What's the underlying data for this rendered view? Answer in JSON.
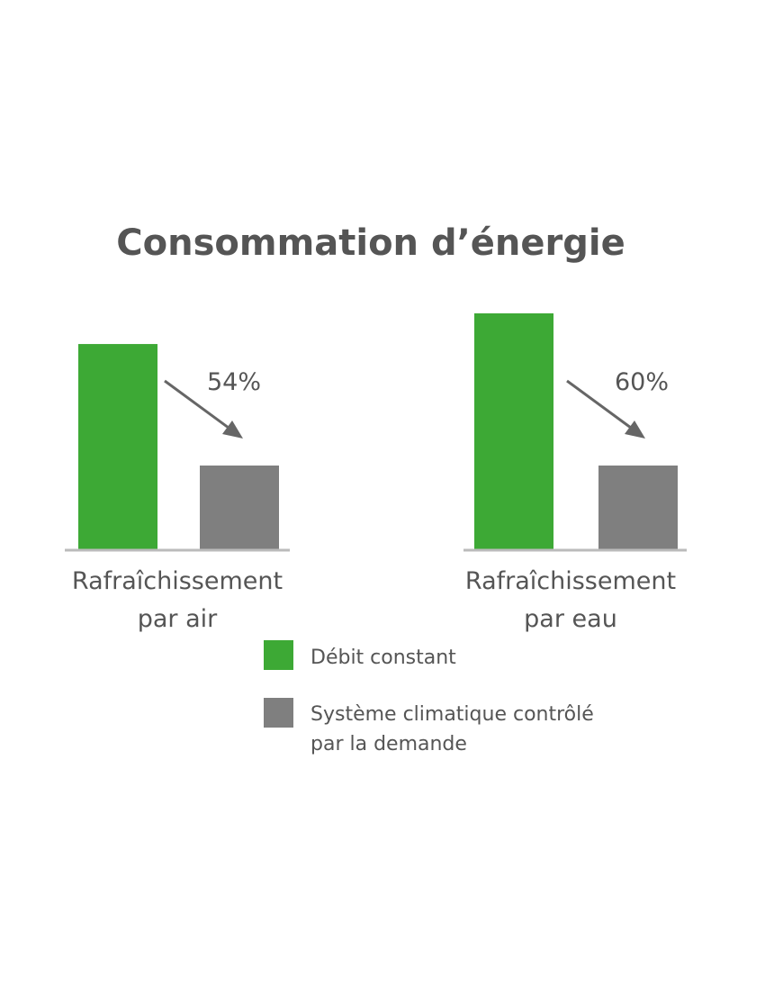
{
  "chart_data": {
    "type": "bar",
    "title": "Consommation d’énergie",
    "categories": [
      {
        "line1": "Rafraîchissement",
        "line2": "par air"
      },
      {
        "line1": "Rafraîchissement",
        "line2": "par eau"
      }
    ],
    "series": [
      {
        "name": "Débit constant",
        "color": "#3da935",
        "values": [
          87,
          100
        ]
      },
      {
        "name_line1": "Système climatique contrôlé",
        "name_line2": "par la demande",
        "color": "#7f7f7f",
        "values": [
          35.5,
          35.5
        ]
      }
    ],
    "annotations": [
      "54%",
      "60%"
    ],
    "axis_line_color": "#bbbbbb",
    "text_color": "#555555",
    "grid": false,
    "legend_position": "bottom"
  }
}
